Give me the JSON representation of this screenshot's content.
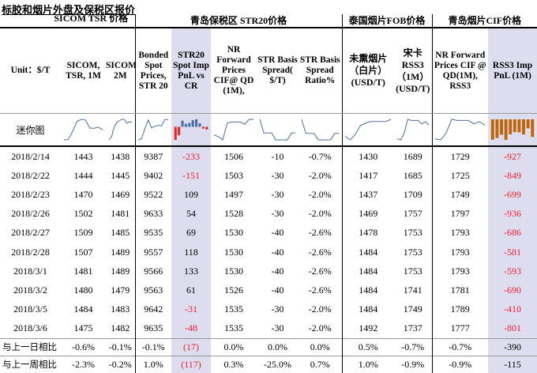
{
  "title": "标胶和烟片外盘及保税区报价",
  "group_headers": {
    "sicom": "SICOM TSR 价格",
    "qingdao_str20": "青岛保税区 STR20价格",
    "thai_fob": "泰国烟片FOB价格",
    "qingdao_cif": "青岛烟片CIF价格"
  },
  "column_headers": [
    "Unit：$/T",
    "SICOM, TSR, 1M",
    "SICOM,TSR, 2M",
    "Bonded Spot Prices, STR 20",
    "STR20 Spot Imp PnL vs CR",
    "NR Forward Prices CIF@ QD (1M),",
    "STR Basis Spread( $/T)",
    "STR Basis Spread Ratio%",
    "未熏烟片（白片）(USD/T)",
    "宋卡RSS3（1M）(USD/T)",
    "NR Forward Prices CIF @ QD(1M), RSS3",
    "RSS3 Imp PnL (1M)"
  ],
  "mini_chart_label": "迷你图",
  "rows": [
    {
      "date": "2018/2/14",
      "v": [
        "1443",
        "1438",
        "9387",
        "-233",
        "1506",
        "-10",
        "-0.7%",
        "1430",
        "1689",
        "1729",
        "-927"
      ]
    },
    {
      "date": "2018/2/22",
      "v": [
        "1444",
        "1445",
        "9402",
        "-151",
        "1503",
        "-30",
        "-2.0%",
        "1417",
        "1685",
        "1725",
        "-849"
      ]
    },
    {
      "date": "2018/2/23",
      "v": [
        "1470",
        "1469",
        "9522",
        "109",
        "1497",
        "-30",
        "-2.0%",
        "1437",
        "1709",
        "1749",
        "-699"
      ]
    },
    {
      "date": "2018/2/26",
      "v": [
        "1502",
        "1481",
        "9633",
        "54",
        "1528",
        "-30",
        "-2.0%",
        "1469",
        "1757",
        "1797",
        "-936"
      ]
    },
    {
      "date": "2018/2/27",
      "v": [
        "1509",
        "1485",
        "9535",
        "69",
        "1530",
        "-40",
        "-2.6%",
        "1478",
        "1753",
        "1793",
        "-686"
      ]
    },
    {
      "date": "2018/2/28",
      "v": [
        "1507",
        "1489",
        "9557",
        "118",
        "1530",
        "-40",
        "-2.6%",
        "1484",
        "1753",
        "1793",
        "-581"
      ]
    },
    {
      "date": "2018/3/1",
      "v": [
        "1481",
        "1489",
        "9566",
        "133",
        "1530",
        "-40",
        "-2.6%",
        "1484",
        "1753",
        "1793",
        "-593"
      ]
    },
    {
      "date": "2018/3/2",
      "v": [
        "1480",
        "1479",
        "9563",
        "61",
        "1526",
        "-40",
        "-2.6%",
        "1484",
        "1741",
        "1781",
        "-690"
      ]
    },
    {
      "date": "2018/3/5",
      "v": [
        "1484",
        "1483",
        "9642",
        "-31",
        "1535",
        "-30",
        "-2.0%",
        "1484",
        "1749",
        "1789",
        "-410"
      ]
    },
    {
      "date": "2018/3/6",
      "v": [
        "1475",
        "1482",
        "9635",
        "-48",
        "1535",
        "-30",
        "-2.0%",
        "1492",
        "1737",
        "1777",
        "-801"
      ]
    }
  ],
  "summary_rows": [
    {
      "label": "与上一日相比",
      "v": [
        "-0.6%",
        "-0.1%",
        "-0.1%",
        "(17)",
        "0.0%",
        "0.0%",
        "0.0%",
        "0.5%",
        "-0.7%",
        "-0.7%",
        "-390"
      ]
    },
    {
      "label": "与上一周相比",
      "v": [
        "-2.3%",
        "-0.2%",
        "1.0%",
        "(117)",
        "0.3%",
        "-25.0%",
        "0.7%",
        "1.0%",
        "-0.9%",
        "-0.9%",
        "-115"
      ]
    }
  ],
  "colors": {
    "negative": "#e8262a",
    "highlight_column": "#dedcef",
    "sparkline": "#4a6fa5"
  }
}
